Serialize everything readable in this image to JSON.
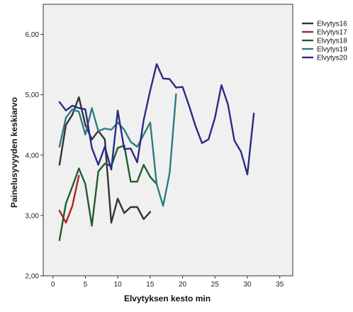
{
  "chart_data": {
    "type": "line",
    "xlabel": "Elvytyksen kesto min",
    "ylabel": "Painelusyvyyden keskiarvo",
    "xlim": [
      -1.5,
      37
    ],
    "ylim": [
      2.0,
      6.5
    ],
    "xticks": [
      0,
      5,
      10,
      15,
      20,
      25,
      30,
      35
    ],
    "xtick_labels": [
      "0",
      "5",
      "10",
      "15",
      "20",
      "25",
      "30",
      "35"
    ],
    "yticks": [
      2.0,
      3.0,
      4.0,
      5.0,
      6.0
    ],
    "ytick_labels": [
      "2,00",
      "3,00",
      "4,00",
      "5,00",
      "6,00"
    ],
    "grid": false,
    "background": "#f0f0f0",
    "legend_position": "top-right, outside plot",
    "series": [
      {
        "name": "Elvytys16",
        "color": "#333333",
        "x": [
          1,
          2,
          3,
          4,
          5,
          6,
          7,
          8,
          9,
          10,
          11,
          12,
          13,
          14,
          15
        ],
        "y": [
          3.84,
          4.5,
          4.67,
          4.96,
          4.5,
          4.26,
          4.4,
          4.26,
          2.88,
          3.28,
          3.04,
          3.14,
          3.14,
          2.94,
          3.06
        ]
      },
      {
        "name": "Elvytys17",
        "color": "#b22222",
        "x": [
          1,
          2,
          3,
          4
        ],
        "y": [
          3.08,
          2.88,
          3.16,
          3.66
        ]
      },
      {
        "name": "Elvytys18",
        "color": "#1f5e2e",
        "x": [
          1,
          2,
          3,
          4,
          5,
          6,
          7,
          8,
          9,
          10,
          11,
          12,
          13,
          14,
          15,
          16
        ],
        "y": [
          2.59,
          3.2,
          3.48,
          3.78,
          3.52,
          2.83,
          3.73,
          3.86,
          3.82,
          4.12,
          4.16,
          3.56,
          3.56,
          3.84,
          3.64,
          3.52
        ]
      },
      {
        "name": "Elvytys19",
        "color": "#2e7b80",
        "x": [
          1,
          2,
          3,
          4,
          5,
          6,
          7,
          8,
          9,
          10,
          11,
          12,
          13,
          14,
          15,
          16,
          17,
          18,
          19
        ],
        "y": [
          4.14,
          4.62,
          4.76,
          4.72,
          4.34,
          4.78,
          4.4,
          4.44,
          4.42,
          4.54,
          4.42,
          4.22,
          4.14,
          4.34,
          4.54,
          3.52,
          3.16,
          3.7,
          5.01
        ]
      },
      {
        "name": "Elvytys20",
        "color": "#2b2b85",
        "x": [
          1,
          2,
          3,
          4,
          5,
          6,
          7,
          8,
          9,
          10,
          11,
          12,
          13,
          14,
          15,
          16,
          17,
          18,
          19,
          20,
          21,
          22,
          23,
          24,
          25,
          26,
          27,
          28,
          29,
          30,
          31
        ],
        "y": [
          4.88,
          4.74,
          4.82,
          4.78,
          4.76,
          4.12,
          3.84,
          4.14,
          3.76,
          4.74,
          4.1,
          4.11,
          3.88,
          4.58,
          5.07,
          5.51,
          5.27,
          5.26,
          5.12,
          5.13,
          4.82,
          4.48,
          4.2,
          4.26,
          4.62,
          5.16,
          4.84,
          4.24,
          4.06,
          3.68,
          4.69
        ]
      }
    ]
  }
}
